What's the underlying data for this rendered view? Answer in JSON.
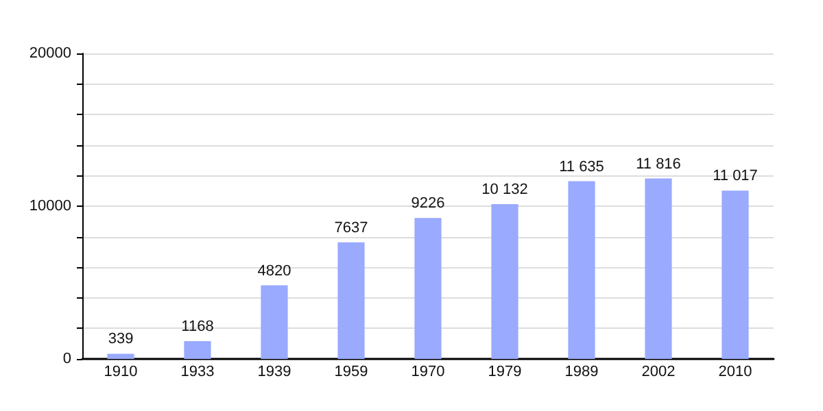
{
  "chart_data": {
    "type": "bar",
    "categories": [
      "1910",
      "1933",
      "1939",
      "1959",
      "1970",
      "1979",
      "1989",
      "2002",
      "2010"
    ],
    "values": [
      339,
      1168,
      4820,
      7637,
      9226,
      10132,
      11635,
      11816,
      11017
    ],
    "value_labels": [
      "339",
      "1168",
      "4820",
      "7637",
      "9226",
      "10 132",
      "11 635",
      "11 816",
      "11 017"
    ],
    "color": "#99aaff",
    "ylim": [
      0,
      20000
    ],
    "yticks": [
      0,
      {
        "value": 2000,
        "label": null
      },
      {
        "value": 4000,
        "label": null
      },
      {
        "value": 6000,
        "label": null
      },
      {
        "value": 8000,
        "label": null
      },
      10000,
      {
        "value": 12000,
        "label": null
      },
      {
        "value": 14000,
        "label": null
      },
      {
        "value": 16000,
        "label": null
      },
      {
        "value": 18000,
        "label": null
      },
      20000
    ],
    "grid": "y"
  }
}
